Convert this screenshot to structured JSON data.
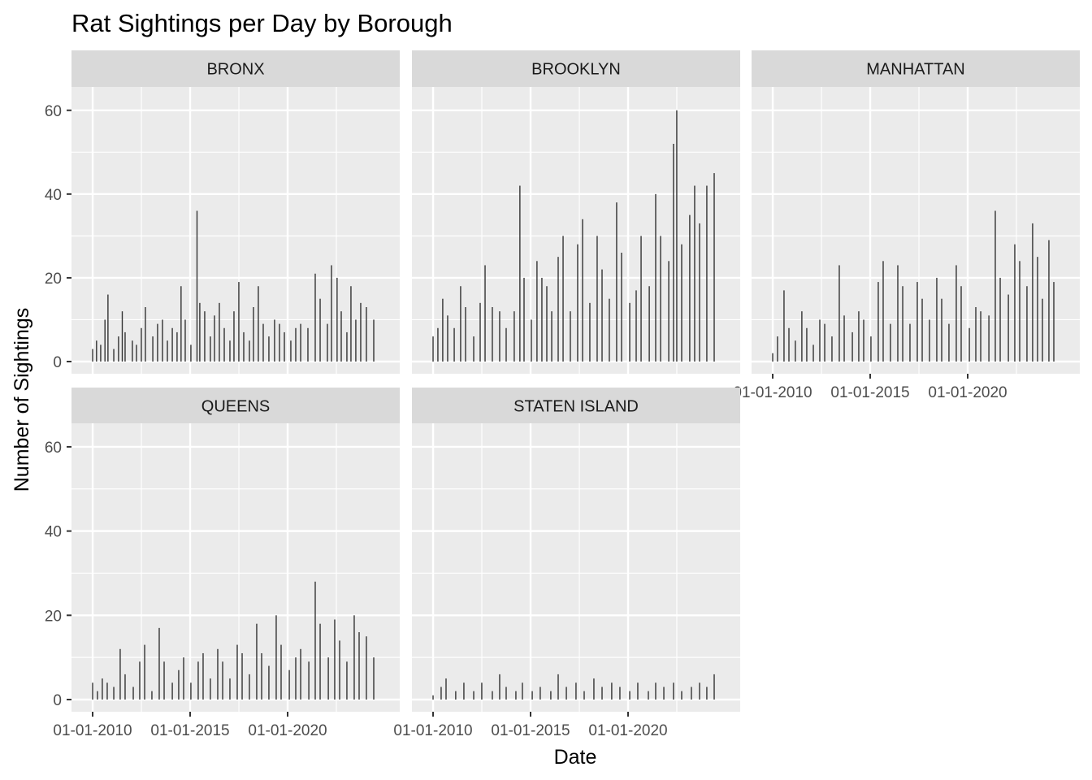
{
  "chart_data": {
    "type": "bar",
    "title": "Rat Sightings per Day by Borough",
    "xlabel": "Date",
    "ylabel": "Number of Sightings",
    "x_range": [
      "2009-09-01",
      "2024-12-31"
    ],
    "ylim": [
      0,
      65
    ],
    "x_ticks": [
      "01-01-2010",
      "01-01-2015",
      "01-01-2020"
    ],
    "x_tick_dates": [
      "2010-01-01",
      "2015-01-01",
      "2020-01-01"
    ],
    "y_ticks": [
      0,
      20,
      40,
      60
    ],
    "grid": true,
    "facet_layout": "3 columns x 2 rows",
    "colors": {
      "panel_background": "#ebebeb",
      "strip_background": "#d9d9d9",
      "bar": "#333333",
      "gridline": "#ffffff"
    },
    "panels": [
      {
        "name": "BRONX",
        "points": [
          {
            "date": "2010-01-01",
            "value": 3
          },
          {
            "date": "2010-03-15",
            "value": 5
          },
          {
            "date": "2010-06-01",
            "value": 4
          },
          {
            "date": "2010-08-20",
            "value": 10
          },
          {
            "date": "2010-10-15",
            "value": 16
          },
          {
            "date": "2011-02-01",
            "value": 3
          },
          {
            "date": "2011-05-01",
            "value": 6
          },
          {
            "date": "2011-07-10",
            "value": 12
          },
          {
            "date": "2011-09-01",
            "value": 7
          },
          {
            "date": "2012-01-15",
            "value": 5
          },
          {
            "date": "2012-04-01",
            "value": 4
          },
          {
            "date": "2012-07-01",
            "value": 8
          },
          {
            "date": "2012-09-15",
            "value": 13
          },
          {
            "date": "2013-02-01",
            "value": 6
          },
          {
            "date": "2013-05-01",
            "value": 9
          },
          {
            "date": "2013-08-01",
            "value": 10
          },
          {
            "date": "2013-11-01",
            "value": 5
          },
          {
            "date": "2014-02-01",
            "value": 8
          },
          {
            "date": "2014-05-01",
            "value": 7
          },
          {
            "date": "2014-07-15",
            "value": 18
          },
          {
            "date": "2014-10-01",
            "value": 10
          },
          {
            "date": "2015-01-15",
            "value": 4
          },
          {
            "date": "2015-05-10",
            "value": 36
          },
          {
            "date": "2015-07-01",
            "value": 14
          },
          {
            "date": "2015-10-01",
            "value": 12
          },
          {
            "date": "2016-01-15",
            "value": 6
          },
          {
            "date": "2016-04-01",
            "value": 11
          },
          {
            "date": "2016-07-01",
            "value": 14
          },
          {
            "date": "2016-10-01",
            "value": 8
          },
          {
            "date": "2017-01-15",
            "value": 5
          },
          {
            "date": "2017-04-01",
            "value": 12
          },
          {
            "date": "2017-07-01",
            "value": 19
          },
          {
            "date": "2017-10-01",
            "value": 7
          },
          {
            "date": "2018-01-15",
            "value": 5
          },
          {
            "date": "2018-04-01",
            "value": 13
          },
          {
            "date": "2018-07-01",
            "value": 18
          },
          {
            "date": "2018-10-01",
            "value": 9
          },
          {
            "date": "2019-01-15",
            "value": 6
          },
          {
            "date": "2019-05-01",
            "value": 10
          },
          {
            "date": "2019-08-01",
            "value": 9
          },
          {
            "date": "2019-11-01",
            "value": 7
          },
          {
            "date": "2020-03-01",
            "value": 5
          },
          {
            "date": "2020-06-01",
            "value": 8
          },
          {
            "date": "2020-09-01",
            "value": 9
          },
          {
            "date": "2021-01-15",
            "value": 8
          },
          {
            "date": "2021-06-01",
            "value": 21
          },
          {
            "date": "2021-09-01",
            "value": 15
          },
          {
            "date": "2022-01-15",
            "value": 9
          },
          {
            "date": "2022-04-01",
            "value": 23
          },
          {
            "date": "2022-07-15",
            "value": 20
          },
          {
            "date": "2022-10-01",
            "value": 12
          },
          {
            "date": "2023-01-15",
            "value": 7
          },
          {
            "date": "2023-04-01",
            "value": 18
          },
          {
            "date": "2023-07-01",
            "value": 10
          },
          {
            "date": "2023-10-01",
            "value": 14
          },
          {
            "date": "2024-01-15",
            "value": 13
          },
          {
            "date": "2024-06-01",
            "value": 10
          }
        ]
      },
      {
        "name": "BROOKLYN",
        "points": [
          {
            "date": "2010-01-01",
            "value": 6
          },
          {
            "date": "2010-04-01",
            "value": 8
          },
          {
            "date": "2010-07-01",
            "value": 15
          },
          {
            "date": "2010-10-01",
            "value": 11
          },
          {
            "date": "2011-02-01",
            "value": 8
          },
          {
            "date": "2011-06-01",
            "value": 18
          },
          {
            "date": "2011-09-01",
            "value": 13
          },
          {
            "date": "2012-02-01",
            "value": 6
          },
          {
            "date": "2012-06-01",
            "value": 14
          },
          {
            "date": "2012-09-01",
            "value": 23
          },
          {
            "date": "2013-01-15",
            "value": 13
          },
          {
            "date": "2013-06-01",
            "value": 12
          },
          {
            "date": "2013-10-01",
            "value": 8
          },
          {
            "date": "2014-03-01",
            "value": 12
          },
          {
            "date": "2014-06-15",
            "value": 42
          },
          {
            "date": "2014-09-01",
            "value": 20
          },
          {
            "date": "2015-01-15",
            "value": 10
          },
          {
            "date": "2015-05-01",
            "value": 24
          },
          {
            "date": "2015-08-01",
            "value": 20
          },
          {
            "date": "2015-11-01",
            "value": 18
          },
          {
            "date": "2016-02-01",
            "value": 12
          },
          {
            "date": "2016-06-01",
            "value": 25
          },
          {
            "date": "2016-09-01",
            "value": 30
          },
          {
            "date": "2017-01-15",
            "value": 12
          },
          {
            "date": "2017-06-01",
            "value": 28
          },
          {
            "date": "2017-09-01",
            "value": 34
          },
          {
            "date": "2018-01-15",
            "value": 14
          },
          {
            "date": "2018-06-01",
            "value": 30
          },
          {
            "date": "2018-09-01",
            "value": 22
          },
          {
            "date": "2019-01-15",
            "value": 15
          },
          {
            "date": "2019-06-01",
            "value": 38
          },
          {
            "date": "2019-09-01",
            "value": 26
          },
          {
            "date": "2020-02-01",
            "value": 14
          },
          {
            "date": "2020-06-01",
            "value": 17
          },
          {
            "date": "2020-09-01",
            "value": 30
          },
          {
            "date": "2021-02-01",
            "value": 18
          },
          {
            "date": "2021-06-01",
            "value": 40
          },
          {
            "date": "2021-09-01",
            "value": 30
          },
          {
            "date": "2022-02-01",
            "value": 24
          },
          {
            "date": "2022-05-01",
            "value": 52
          },
          {
            "date": "2022-07-01",
            "value": 60
          },
          {
            "date": "2022-10-01",
            "value": 28
          },
          {
            "date": "2023-03-01",
            "value": 35
          },
          {
            "date": "2023-06-01",
            "value": 42
          },
          {
            "date": "2023-09-01",
            "value": 33
          },
          {
            "date": "2024-01-15",
            "value": 42
          },
          {
            "date": "2024-06-01",
            "value": 45
          }
        ]
      },
      {
        "name": "MANHATTAN",
        "points": [
          {
            "date": "2010-01-01",
            "value": 2
          },
          {
            "date": "2010-04-01",
            "value": 6
          },
          {
            "date": "2010-08-01",
            "value": 17
          },
          {
            "date": "2010-11-01",
            "value": 8
          },
          {
            "date": "2011-03-01",
            "value": 5
          },
          {
            "date": "2011-07-01",
            "value": 12
          },
          {
            "date": "2011-10-01",
            "value": 8
          },
          {
            "date": "2012-02-01",
            "value": 4
          },
          {
            "date": "2012-06-01",
            "value": 10
          },
          {
            "date": "2012-09-01",
            "value": 9
          },
          {
            "date": "2013-01-15",
            "value": 6
          },
          {
            "date": "2013-06-01",
            "value": 23
          },
          {
            "date": "2013-09-01",
            "value": 11
          },
          {
            "date": "2014-02-01",
            "value": 7
          },
          {
            "date": "2014-06-01",
            "value": 12
          },
          {
            "date": "2014-09-01",
            "value": 10
          },
          {
            "date": "2015-01-15",
            "value": 6
          },
          {
            "date": "2015-06-01",
            "value": 19
          },
          {
            "date": "2015-09-01",
            "value": 24
          },
          {
            "date": "2016-01-15",
            "value": 9
          },
          {
            "date": "2016-06-01",
            "value": 23
          },
          {
            "date": "2016-09-01",
            "value": 18
          },
          {
            "date": "2017-01-15",
            "value": 9
          },
          {
            "date": "2017-06-01",
            "value": 19
          },
          {
            "date": "2017-09-01",
            "value": 15
          },
          {
            "date": "2018-01-15",
            "value": 10
          },
          {
            "date": "2018-06-01",
            "value": 20
          },
          {
            "date": "2018-09-01",
            "value": 15
          },
          {
            "date": "2019-01-15",
            "value": 9
          },
          {
            "date": "2019-06-01",
            "value": 23
          },
          {
            "date": "2019-09-01",
            "value": 18
          },
          {
            "date": "2020-02-01",
            "value": 8
          },
          {
            "date": "2020-06-01",
            "value": 13
          },
          {
            "date": "2020-09-01",
            "value": 12
          },
          {
            "date": "2021-02-01",
            "value": 11
          },
          {
            "date": "2021-06-01",
            "value": 36
          },
          {
            "date": "2021-09-01",
            "value": 20
          },
          {
            "date": "2022-02-01",
            "value": 16
          },
          {
            "date": "2022-06-01",
            "value": 28
          },
          {
            "date": "2022-09-01",
            "value": 24
          },
          {
            "date": "2023-01-15",
            "value": 18
          },
          {
            "date": "2023-05-01",
            "value": 33
          },
          {
            "date": "2023-08-01",
            "value": 25
          },
          {
            "date": "2023-11-01",
            "value": 15
          },
          {
            "date": "2024-03-01",
            "value": 29
          },
          {
            "date": "2024-06-01",
            "value": 19
          }
        ]
      },
      {
        "name": "QUEENS",
        "points": [
          {
            "date": "2010-01-01",
            "value": 4
          },
          {
            "date": "2010-04-01",
            "value": 2
          },
          {
            "date": "2010-07-01",
            "value": 5
          },
          {
            "date": "2010-10-01",
            "value": 4
          },
          {
            "date": "2011-02-01",
            "value": 3
          },
          {
            "date": "2011-06-01",
            "value": 12
          },
          {
            "date": "2011-09-01",
            "value": 6
          },
          {
            "date": "2012-02-01",
            "value": 3
          },
          {
            "date": "2012-06-01",
            "value": 9
          },
          {
            "date": "2012-09-01",
            "value": 13
          },
          {
            "date": "2013-01-15",
            "value": 2
          },
          {
            "date": "2013-06-01",
            "value": 17
          },
          {
            "date": "2013-09-01",
            "value": 9
          },
          {
            "date": "2014-02-01",
            "value": 4
          },
          {
            "date": "2014-06-01",
            "value": 7
          },
          {
            "date": "2014-09-01",
            "value": 10
          },
          {
            "date": "2015-01-15",
            "value": 4
          },
          {
            "date": "2015-06-01",
            "value": 9
          },
          {
            "date": "2015-09-01",
            "value": 11
          },
          {
            "date": "2016-01-15",
            "value": 5
          },
          {
            "date": "2016-06-01",
            "value": 12
          },
          {
            "date": "2016-09-01",
            "value": 9
          },
          {
            "date": "2017-01-15",
            "value": 5
          },
          {
            "date": "2017-06-01",
            "value": 13
          },
          {
            "date": "2017-09-01",
            "value": 11
          },
          {
            "date": "2018-01-15",
            "value": 6
          },
          {
            "date": "2018-06-01",
            "value": 18
          },
          {
            "date": "2018-09-01",
            "value": 11
          },
          {
            "date": "2019-01-15",
            "value": 8
          },
          {
            "date": "2019-06-01",
            "value": 20
          },
          {
            "date": "2019-09-01",
            "value": 13
          },
          {
            "date": "2020-02-01",
            "value": 7
          },
          {
            "date": "2020-06-01",
            "value": 10
          },
          {
            "date": "2020-09-01",
            "value": 12
          },
          {
            "date": "2021-02-01",
            "value": 9
          },
          {
            "date": "2021-06-01",
            "value": 28
          },
          {
            "date": "2021-09-01",
            "value": 18
          },
          {
            "date": "2022-02-01",
            "value": 10
          },
          {
            "date": "2022-06-01",
            "value": 19
          },
          {
            "date": "2022-09-01",
            "value": 14
          },
          {
            "date": "2023-01-15",
            "value": 9
          },
          {
            "date": "2023-06-01",
            "value": 20
          },
          {
            "date": "2023-09-01",
            "value": 16
          },
          {
            "date": "2024-01-15",
            "value": 15
          },
          {
            "date": "2024-06-01",
            "value": 10
          }
        ]
      },
      {
        "name": "STATEN ISLAND",
        "points": [
          {
            "date": "2010-01-01",
            "value": 1
          },
          {
            "date": "2010-06-01",
            "value": 3
          },
          {
            "date": "2010-09-01",
            "value": 5
          },
          {
            "date": "2011-03-01",
            "value": 2
          },
          {
            "date": "2011-08-01",
            "value": 4
          },
          {
            "date": "2012-02-01",
            "value": 2
          },
          {
            "date": "2012-07-01",
            "value": 4
          },
          {
            "date": "2013-01-15",
            "value": 2
          },
          {
            "date": "2013-06-01",
            "value": 6
          },
          {
            "date": "2013-10-01",
            "value": 3
          },
          {
            "date": "2014-04-01",
            "value": 2
          },
          {
            "date": "2014-08-01",
            "value": 4
          },
          {
            "date": "2015-02-01",
            "value": 2
          },
          {
            "date": "2015-07-01",
            "value": 3
          },
          {
            "date": "2016-01-15",
            "value": 2
          },
          {
            "date": "2016-06-01",
            "value": 6
          },
          {
            "date": "2016-11-01",
            "value": 3
          },
          {
            "date": "2017-05-01",
            "value": 4
          },
          {
            "date": "2017-10-01",
            "value": 2
          },
          {
            "date": "2018-04-01",
            "value": 5
          },
          {
            "date": "2018-09-01",
            "value": 3
          },
          {
            "date": "2019-03-01",
            "value": 4
          },
          {
            "date": "2019-08-01",
            "value": 3
          },
          {
            "date": "2020-02-01",
            "value": 2
          },
          {
            "date": "2020-07-01",
            "value": 4
          },
          {
            "date": "2021-01-15",
            "value": 2
          },
          {
            "date": "2021-06-01",
            "value": 4
          },
          {
            "date": "2021-11-01",
            "value": 3
          },
          {
            "date": "2022-05-01",
            "value": 4
          },
          {
            "date": "2022-10-01",
            "value": 2
          },
          {
            "date": "2023-04-01",
            "value": 3
          },
          {
            "date": "2023-09-01",
            "value": 4
          },
          {
            "date": "2024-01-15",
            "value": 3
          },
          {
            "date": "2024-06-01",
            "value": 6
          }
        ]
      }
    ]
  }
}
